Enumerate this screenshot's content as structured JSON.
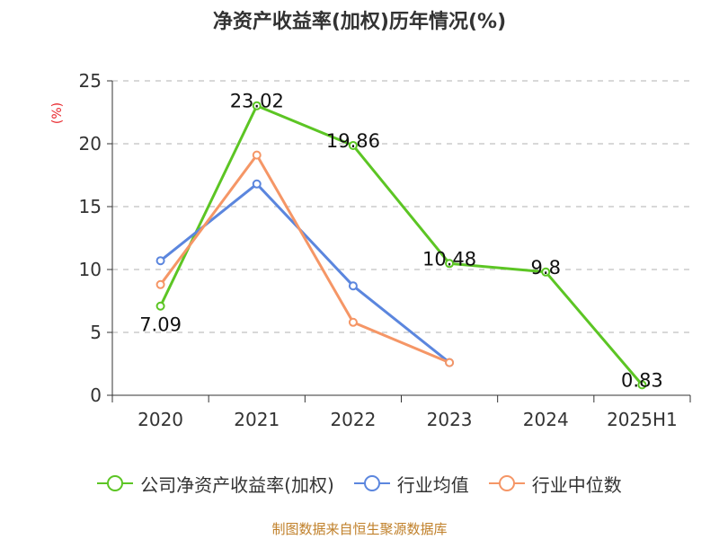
{
  "title": "净资产收益率(加权)历年情况(%)",
  "source": "制图数据来自恒生聚源数据库",
  "colors": {
    "green": "#5cc524",
    "blue": "#5b86de",
    "orange": "#f59666",
    "unit": "#e8262b",
    "source": "#c0802a"
  },
  "chart_data": {
    "type": "line",
    "title": "净资产收益率(加权)历年情况(%)",
    "ylabel": "(%)",
    "xlabel": "",
    "categories": [
      "2020",
      "2021",
      "2022",
      "2023",
      "2024",
      "2025H1"
    ],
    "ylim": [
      0,
      25
    ],
    "yticks": [
      0,
      5,
      10,
      15,
      20,
      25
    ],
    "grid": "horizontal-dashed",
    "legend_position": "bottom",
    "series": [
      {
        "name": "公司净资产收益率(加权)",
        "color": "#5cc524",
        "values": [
          7.09,
          23.02,
          19.86,
          10.48,
          9.8,
          0.83
        ],
        "labels": [
          "7.09",
          "23.02",
          "19.86",
          "10.48",
          "9.8",
          "0.83"
        ]
      },
      {
        "name": "行业均值",
        "color": "#5b86de",
        "values": [
          10.7,
          16.8,
          8.7,
          2.6,
          null,
          null
        ]
      },
      {
        "name": "行业中位数",
        "color": "#f59666",
        "values": [
          8.8,
          19.1,
          5.8,
          2.6,
          null,
          null
        ]
      }
    ]
  }
}
